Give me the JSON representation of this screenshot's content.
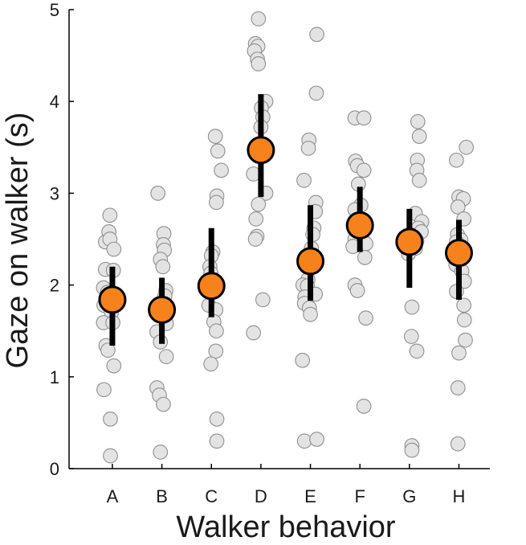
{
  "chart_data": {
    "type": "scatter",
    "title": "",
    "xlabel": "Walker behavior",
    "ylabel": "Gaze on walker (s)",
    "categories": [
      "A",
      "B",
      "C",
      "D",
      "E",
      "F",
      "G",
      "H"
    ],
    "yticks": [
      "0",
      "1",
      "2",
      "3",
      "4",
      "5"
    ],
    "ylim": [
      0,
      5
    ],
    "grid": false,
    "colors": {
      "points": "#e3e3e3",
      "point_edge": "#8f8f8f",
      "mean": "#f7821b",
      "error": "#000000",
      "axis": "#000000"
    },
    "series": [
      {
        "name": "individual",
        "points": [
          [
            {
              "dx": -0.05,
              "y": 2.76
            },
            {
              "dx": -0.14,
              "y": 2.47
            },
            {
              "dx": -0.07,
              "y": 2.58
            },
            {
              "dx": -0.05,
              "y": 2.5
            },
            {
              "dx": 0.03,
              "y": 2.39
            },
            {
              "dx": -0.14,
              "y": 2.17
            },
            {
              "dx": 0.02,
              "y": 2.16
            },
            {
              "dx": -0.18,
              "y": 1.97
            },
            {
              "dx": -0.1,
              "y": 1.92
            },
            {
              "dx": -0.17,
              "y": 1.78
            },
            {
              "dx": -0.02,
              "y": 1.7
            },
            {
              "dx": -0.18,
              "y": 1.59
            },
            {
              "dx": 0.01,
              "y": 1.59
            },
            {
              "dx": -0.13,
              "y": 1.34
            },
            {
              "dx": -0.09,
              "y": 1.29
            },
            {
              "dx": 0.03,
              "y": 1.12
            },
            {
              "dx": -0.17,
              "y": 0.86
            },
            {
              "dx": -0.04,
              "y": 0.54
            },
            {
              "dx": -0.04,
              "y": 0.14
            }
          ],
          [
            {
              "dx": -0.08,
              "y": 3.0
            },
            {
              "dx": 0.04,
              "y": 2.56
            },
            {
              "dx": 0.03,
              "y": 2.44
            },
            {
              "dx": 0.05,
              "y": 2.38
            },
            {
              "dx": -0.03,
              "y": 2.28
            },
            {
              "dx": 0.02,
              "y": 2.2
            },
            {
              "dx": 0.08,
              "y": 1.94
            },
            {
              "dx": 0.06,
              "y": 1.88
            },
            {
              "dx": 0.05,
              "y": 1.78
            },
            {
              "dx": 0.09,
              "y": 1.58
            },
            {
              "dx": -0.1,
              "y": 1.49
            },
            {
              "dx": -0.03,
              "y": 1.38
            },
            {
              "dx": 0.09,
              "y": 1.22
            },
            {
              "dx": -0.1,
              "y": 0.88
            },
            {
              "dx": -0.05,
              "y": 0.8
            },
            {
              "dx": 0.03,
              "y": 0.7
            },
            {
              "dx": -0.03,
              "y": 0.18
            }
          ],
          [
            {
              "dx": 0.08,
              "y": 3.62
            },
            {
              "dx": 0.13,
              "y": 3.46
            },
            {
              "dx": 0.2,
              "y": 3.25
            },
            {
              "dx": 0.11,
              "y": 2.97
            },
            {
              "dx": 0.1,
              "y": 2.9
            },
            {
              "dx": 0.03,
              "y": 2.36
            },
            {
              "dx": 0.0,
              "y": 2.32
            },
            {
              "dx": -0.03,
              "y": 2.2
            },
            {
              "dx": -0.01,
              "y": 2.13
            },
            {
              "dx": 0.0,
              "y": 1.96
            },
            {
              "dx": -0.05,
              "y": 1.78
            },
            {
              "dx": 0.09,
              "y": 1.73
            },
            {
              "dx": 0.05,
              "y": 1.6
            },
            {
              "dx": 0.09,
              "y": 1.28
            },
            {
              "dx": 0.1,
              "y": 1.5
            },
            {
              "dx": -0.01,
              "y": 1.14
            },
            {
              "dx": 0.11,
              "y": 0.54
            },
            {
              "dx": 0.11,
              "y": 0.3
            }
          ],
          [
            {
              "dx": -0.05,
              "y": 4.9
            },
            {
              "dx": -0.11,
              "y": 4.63
            },
            {
              "dx": -0.06,
              "y": 4.6
            },
            {
              "dx": -0.13,
              "y": 4.55
            },
            {
              "dx": -0.07,
              "y": 4.46
            },
            {
              "dx": -0.05,
              "y": 4.41
            },
            {
              "dx": 0.1,
              "y": 4.0
            },
            {
              "dx": 0.01,
              "y": 3.93
            },
            {
              "dx": 0.04,
              "y": 3.83
            },
            {
              "dx": 0.0,
              "y": 3.72
            },
            {
              "dx": -0.1,
              "y": 3.48
            },
            {
              "dx": -0.15,
              "y": 3.21
            },
            {
              "dx": 0.1,
              "y": 3.0
            },
            {
              "dx": -0.05,
              "y": 2.88
            },
            {
              "dx": -0.1,
              "y": 2.72
            },
            {
              "dx": -0.08,
              "y": 2.53
            },
            {
              "dx": -0.11,
              "y": 2.5
            },
            {
              "dx": 0.04,
              "y": 1.84
            },
            {
              "dx": -0.15,
              "y": 1.48
            }
          ],
          [
            {
              "dx": 0.13,
              "y": 4.73
            },
            {
              "dx": 0.12,
              "y": 4.09
            },
            {
              "dx": -0.03,
              "y": 3.58
            },
            {
              "dx": -0.04,
              "y": 3.49
            },
            {
              "dx": -0.13,
              "y": 3.14
            },
            {
              "dx": 0.11,
              "y": 2.9
            },
            {
              "dx": 0.1,
              "y": 2.8
            },
            {
              "dx": 0.07,
              "y": 2.62
            },
            {
              "dx": 0.05,
              "y": 2.55
            },
            {
              "dx": 0.02,
              "y": 2.4
            },
            {
              "dx": -0.05,
              "y": 2.06
            },
            {
              "dx": -0.15,
              "y": 2.0
            },
            {
              "dx": -0.06,
              "y": 1.99
            },
            {
              "dx": 0.1,
              "y": 1.9
            },
            {
              "dx": -0.11,
              "y": 1.87
            },
            {
              "dx": -0.12,
              "y": 1.8
            },
            {
              "dx": -0.02,
              "y": 1.75
            },
            {
              "dx": 0.0,
              "y": 1.68
            },
            {
              "dx": -0.16,
              "y": 1.18
            },
            {
              "dx": -0.12,
              "y": 0.3
            },
            {
              "dx": 0.13,
              "y": 0.32
            }
          ],
          [
            {
              "dx": -0.1,
              "y": 3.82
            },
            {
              "dx": 0.08,
              "y": 3.82
            },
            {
              "dx": -0.09,
              "y": 3.35
            },
            {
              "dx": -0.05,
              "y": 3.3
            },
            {
              "dx": 0.08,
              "y": 3.25
            },
            {
              "dx": -0.03,
              "y": 3.1
            },
            {
              "dx": 0.02,
              "y": 2.87
            },
            {
              "dx": -0.1,
              "y": 2.82
            },
            {
              "dx": 0.0,
              "y": 2.72
            },
            {
              "dx": -0.1,
              "y": 2.5
            },
            {
              "dx": 0.08,
              "y": 2.47
            },
            {
              "dx": 0.12,
              "y": 2.45
            },
            {
              "dx": -0.14,
              "y": 2.42
            },
            {
              "dx": 0.1,
              "y": 2.3
            },
            {
              "dx": -0.1,
              "y": 2.0
            },
            {
              "dx": -0.05,
              "y": 1.94
            },
            {
              "dx": 0.12,
              "y": 1.64
            },
            {
              "dx": 0.08,
              "y": 0.68
            }
          ],
          [
            {
              "dx": 0.17,
              "y": 3.78
            },
            {
              "dx": 0.2,
              "y": 3.62
            },
            {
              "dx": 0.16,
              "y": 3.36
            },
            {
              "dx": 0.15,
              "y": 3.25
            },
            {
              "dx": 0.2,
              "y": 3.14
            },
            {
              "dx": 0.12,
              "y": 2.78
            },
            {
              "dx": 0.25,
              "y": 2.69
            },
            {
              "dx": 0.18,
              "y": 2.62
            },
            {
              "dx": 0.24,
              "y": 2.58
            },
            {
              "dx": 0.02,
              "y": 2.55
            },
            {
              "dx": 0.15,
              "y": 2.48
            },
            {
              "dx": 0.12,
              "y": 2.4
            },
            {
              "dx": -0.02,
              "y": 2.34
            },
            {
              "dx": 0.05,
              "y": 1.76
            },
            {
              "dx": 0.04,
              "y": 1.44
            },
            {
              "dx": 0.15,
              "y": 1.28
            },
            {
              "dx": 0.05,
              "y": 0.25
            },
            {
              "dx": 0.05,
              "y": 0.2
            }
          ],
          [
            {
              "dx": -0.05,
              "y": 3.36
            },
            {
              "dx": 0.15,
              "y": 3.5
            },
            {
              "dx": 0.0,
              "y": 2.96
            },
            {
              "dx": 0.09,
              "y": 2.94
            },
            {
              "dx": -0.02,
              "y": 2.85
            },
            {
              "dx": 0.1,
              "y": 2.72
            },
            {
              "dx": -0.03,
              "y": 2.55
            },
            {
              "dx": 0.04,
              "y": 2.49
            },
            {
              "dx": -0.05,
              "y": 2.47
            },
            {
              "dx": -0.06,
              "y": 2.22
            },
            {
              "dx": 0.06,
              "y": 2.15
            },
            {
              "dx": 0.11,
              "y": 2.04
            },
            {
              "dx": -0.05,
              "y": 1.93
            },
            {
              "dx": 0.1,
              "y": 1.78
            },
            {
              "dx": 0.11,
              "y": 1.62
            },
            {
              "dx": 0.13,
              "y": 1.4
            },
            {
              "dx": 0.0,
              "y": 1.26
            },
            {
              "dx": -0.02,
              "y": 0.88
            },
            {
              "dx": -0.02,
              "y": 0.27
            }
          ]
        ]
      },
      {
        "name": "mean",
        "values": [
          1.84,
          1.73,
          1.99,
          3.47,
          2.26,
          2.65,
          2.47,
          2.35
        ],
        "error_low": [
          1.34,
          1.36,
          1.65,
          2.96,
          1.83,
          2.36,
          1.97,
          1.84
        ],
        "error_high": [
          2.2,
          2.08,
          2.62,
          4.08,
          2.87,
          3.07,
          2.83,
          2.71
        ]
      }
    ]
  }
}
